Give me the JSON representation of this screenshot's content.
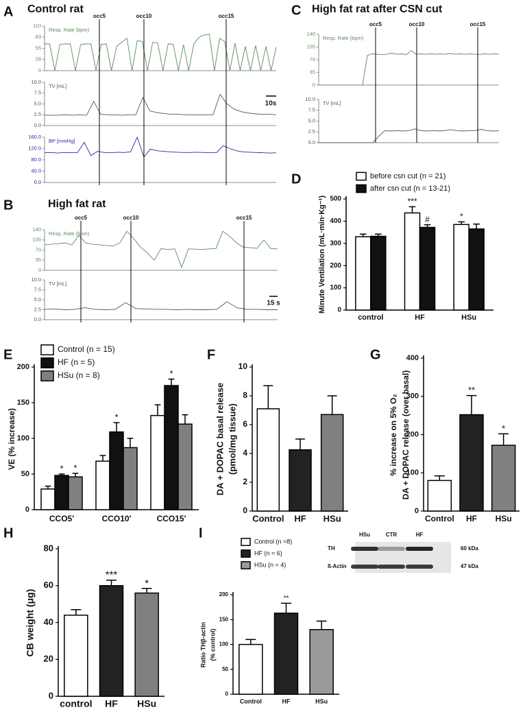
{
  "chart_data": [
    {
      "type": "traces",
      "panel": "A",
      "title": "Control rat",
      "markers": [
        "occ5",
        "occ10",
        "occ15"
      ],
      "scale_bar": "10s",
      "strips": [
        {
          "label": "Resp. Rate (bpm)",
          "color": "#5b8c5b",
          "ylim": [
            0,
            110
          ],
          "yticks": [
            0,
            28,
            55,
            83,
            110
          ],
          "values": [
            66,
            66,
            0,
            65,
            66,
            66,
            0,
            64,
            66,
            66,
            0,
            65,
            66,
            0,
            60,
            70,
            80,
            0,
            74,
            72,
            0,
            70,
            68,
            0,
            66,
            65,
            0,
            64,
            0,
            66,
            82,
            88,
            90,
            0,
            80,
            72,
            0,
            68,
            0,
            60,
            0,
            62,
            0,
            60,
            0,
            58
          ]
        },
        {
          "label": "TV [mL]",
          "color": "#555555",
          "ylim": [
            0,
            10
          ],
          "yticks": [
            {
              "value": 0,
              "label": "0.0"
            },
            2.5,
            {
              "value": 5,
              "label": "5.0"
            },
            7.5,
            {
              "value": 10,
              "label": "10.0"
            }
          ],
          "values": [
            2.4,
            2.4,
            2.4,
            2.5,
            2.4,
            2.5,
            2.4,
            5.6,
            2.6,
            2.5,
            2.5,
            2.4,
            2.5,
            2.5,
            6.5,
            3.4,
            3.0,
            2.8,
            2.6,
            2.6,
            2.5,
            2.5,
            2.5,
            2.5,
            2.5,
            7.2,
            5.0,
            3.8,
            3.2,
            2.9,
            2.7,
            2.6,
            2.6,
            2.5
          ]
        },
        {
          "label": "BP [mmHg]",
          "color": "#2a2a9a",
          "ylim": [
            0,
            160
          ],
          "yticks": [
            {
              "value": 0,
              "label": "0.0"
            },
            {
              "value": 40,
              "label": "40.0"
            },
            {
              "value": 80,
              "label": "80.0"
            },
            {
              "value": 120,
              "label": "120.0"
            },
            {
              "value": 160,
              "label": "160.0"
            }
          ],
          "values": [
            105,
            106,
            104,
            106,
            105,
            106,
            142,
            95,
            110,
            106,
            105,
            107,
            106,
            108,
            160,
            90,
            118,
            112,
            110,
            108,
            107,
            106,
            106,
            107,
            106,
            105,
            106,
            130,
            120,
            112,
            108,
            107,
            106,
            105,
            104,
            105
          ]
        }
      ]
    },
    {
      "type": "traces",
      "panel": "B",
      "title": "High fat rat",
      "markers": [
        "occ5",
        "occ10",
        "occ15"
      ],
      "scale_bar": "15 s",
      "strips": [
        {
          "label": "Resp. Rate (bpm)",
          "color": "#5b8c5b",
          "ylim": [
            0,
            140
          ],
          "yticks": [
            0,
            35,
            70,
            105,
            140
          ],
          "values": [
            88,
            90,
            92,
            95,
            88,
            120,
            95,
            90,
            88,
            86,
            84,
            95,
            135,
            110,
            80,
            60,
            35,
            75,
            72,
            74,
            10,
            74,
            73,
            72,
            74,
            75,
            135,
            118,
            95,
            80,
            78,
            76,
            105,
            75,
            74
          ]
        },
        {
          "label": "TV [mL]",
          "color": "#555555",
          "ylim": [
            0,
            10
          ],
          "yticks": [
            {
              "value": 0,
              "label": "0.0"
            },
            2.5,
            {
              "value": 5,
              "label": "5.0"
            },
            7.5,
            {
              "value": 10,
              "label": "10.0"
            }
          ],
          "values": [
            2.6,
            2.7,
            2.5,
            2.6,
            3.0,
            2.6,
            2.5,
            2.6,
            4.3,
            2.8,
            2.7,
            2.6,
            2.6,
            2.5,
            2.6,
            2.5,
            2.5,
            2.6,
            4.5,
            3.0,
            2.6,
            2.6,
            2.5,
            2.5
          ]
        }
      ]
    },
    {
      "type": "traces",
      "panel": "C",
      "title": "High fat rat after CSN cut",
      "markers": [
        "occ5",
        "occ10",
        "occ15"
      ],
      "strips": [
        {
          "label": "Resp. Rate (bpm)",
          "color": "#5b8c5b",
          "ylim": [
            0,
            140
          ],
          "yticks": [
            0,
            35,
            70,
            105,
            140
          ],
          "values": [
            0,
            0,
            0,
            0,
            0,
            0,
            0,
            0,
            0,
            0,
            82,
            86,
            85,
            84,
            85,
            88,
            85,
            86,
            84,
            95,
            85,
            86,
            85,
            86,
            85,
            86,
            85,
            87,
            85,
            86,
            85,
            86,
            85,
            84,
            86,
            85,
            86,
            85
          ]
        },
        {
          "label": "TV [mL]",
          "color": "#555555",
          "ylim": [
            0,
            10
          ],
          "yticks": [
            {
              "value": 0,
              "label": "0.0"
            },
            2.5,
            {
              "value": 5,
              "label": "5.0"
            },
            7.5,
            {
              "value": 10,
              "label": "10.0"
            }
          ],
          "values": [
            0,
            0,
            0,
            0,
            0,
            0,
            0,
            0,
            0,
            0,
            1.5,
            2.8,
            2.7,
            2.8,
            2.7,
            2.8,
            3.2,
            2.8,
            2.7,
            2.8,
            2.7,
            2.8,
            3.0,
            2.8,
            2.7,
            2.8,
            2.8,
            3.1,
            2.8,
            2.7,
            2.8
          ]
        }
      ]
    },
    {
      "type": "bar",
      "panel": "D",
      "ylabel": "Minute Ventilation (mL·min·Kg⁻¹)",
      "categories": [
        "control",
        "HF",
        "HSu"
      ],
      "series": [
        {
          "name": "before csn cut (n = 21)",
          "color": "#ffffff",
          "values": [
            330,
            437,
            385
          ],
          "errors": [
            12,
            28,
            12
          ],
          "annotations": [
            null,
            "***",
            "*"
          ]
        },
        {
          "name": "after csn cut (n = 13-21)",
          "color": "#111111",
          "values": [
            332,
            372,
            365
          ],
          "errors": [
            10,
            12,
            22
          ],
          "annotations": [
            null,
            "#",
            null
          ]
        }
      ],
      "ylim": [
        0,
        500
      ],
      "yticks": [
        0,
        100,
        200,
        300,
        400,
        500
      ]
    },
    {
      "type": "bar",
      "panel": "E",
      "ylabel": "VE (% increase)",
      "categories": [
        "CCO5'",
        "CCO10'",
        "CCO15'"
      ],
      "series": [
        {
          "name": "Control (n = 15)",
          "color": "#ffffff",
          "values": [
            29,
            68,
            132
          ],
          "errors": [
            4,
            8,
            15
          ],
          "annotations": [
            null,
            null,
            null
          ]
        },
        {
          "name": "HF (n = 5)",
          "color": "#111111",
          "values": [
            48,
            109,
            174
          ],
          "errors": [
            2,
            13,
            9
          ],
          "annotations": [
            "*",
            "*",
            "*"
          ]
        },
        {
          "name": "HSu (n = 8)",
          "color": "#808080",
          "values": [
            46,
            87,
            120
          ],
          "errors": [
            5,
            13,
            13
          ],
          "annotations": [
            "*",
            null,
            null
          ]
        }
      ],
      "ylim": [
        0,
        200
      ],
      "yticks": [
        0,
        50,
        100,
        150,
        200
      ]
    },
    {
      "type": "bar",
      "panel": "F",
      "ylabel": [
        "DA + DOPAC basal release",
        "(pmol/mg tissue)"
      ],
      "categories": [
        "Control",
        "HF",
        "HSu"
      ],
      "values": [
        7.1,
        4.25,
        6.7
      ],
      "errors": [
        1.6,
        0.75,
        1.3
      ],
      "colors": [
        "#ffffff",
        "#222222",
        "#808080"
      ],
      "ylim": [
        0,
        10
      ],
      "yticks": [
        0,
        2,
        4,
        6,
        8,
        10
      ]
    },
    {
      "type": "bar",
      "panel": "G",
      "ylabel": [
        "% increase on  5% O₂",
        "DA + DOPAC release (over basal)"
      ],
      "categories": [
        "Control",
        "HF",
        "HSu"
      ],
      "values": [
        80,
        252,
        172
      ],
      "errors": [
        12,
        50,
        30
      ],
      "colors": [
        "#ffffff",
        "#222222",
        "#808080"
      ],
      "annotations": [
        null,
        "**",
        "*"
      ],
      "ylim": [
        0,
        400
      ],
      "yticks": [
        0,
        100,
        200,
        300,
        400
      ]
    },
    {
      "type": "bar",
      "panel": "H",
      "ylabel": "CB weight (μg)",
      "categories": [
        "control",
        "HF",
        "HSu"
      ],
      "values": [
        44,
        60,
        56
      ],
      "errors": [
        3,
        3,
        2.5
      ],
      "colors": [
        "#ffffff",
        "#222222",
        "#808080"
      ],
      "annotations": [
        null,
        "***",
        "*"
      ],
      "ylim": [
        0,
        80
      ],
      "yticks": [
        0,
        20,
        40,
        60,
        80
      ]
    },
    {
      "type": "bar",
      "panel": "I",
      "ylabel": [
        "Ratio THβ-actin",
        "(% control)"
      ],
      "categories": [
        "Control",
        "HF",
        "HSu"
      ],
      "values": [
        100,
        163,
        130
      ],
      "errors": [
        10,
        20,
        17
      ],
      "colors": [
        "#ffffff",
        "#222222",
        "#9a9a9a"
      ],
      "annotations": [
        null,
        "**",
        null
      ],
      "legend": [
        {
          "name": "Control (n =8)",
          "color": "#ffffff"
        },
        {
          "name": "HF (n = 6)",
          "color": "#222222"
        },
        {
          "name": "HSu (n = 4)",
          "color": "#9a9a9a"
        }
      ],
      "blot": {
        "lanes": [
          "HSu",
          "CTR",
          "HF"
        ],
        "rows": [
          {
            "label": "TH",
            "size": "60 kDa"
          },
          {
            "label": "ß-Actin",
            "size": "47 kDa"
          }
        ]
      },
      "ylim": [
        0,
        200
      ],
      "yticks": [
        0,
        50,
        100,
        150,
        200
      ]
    }
  ]
}
